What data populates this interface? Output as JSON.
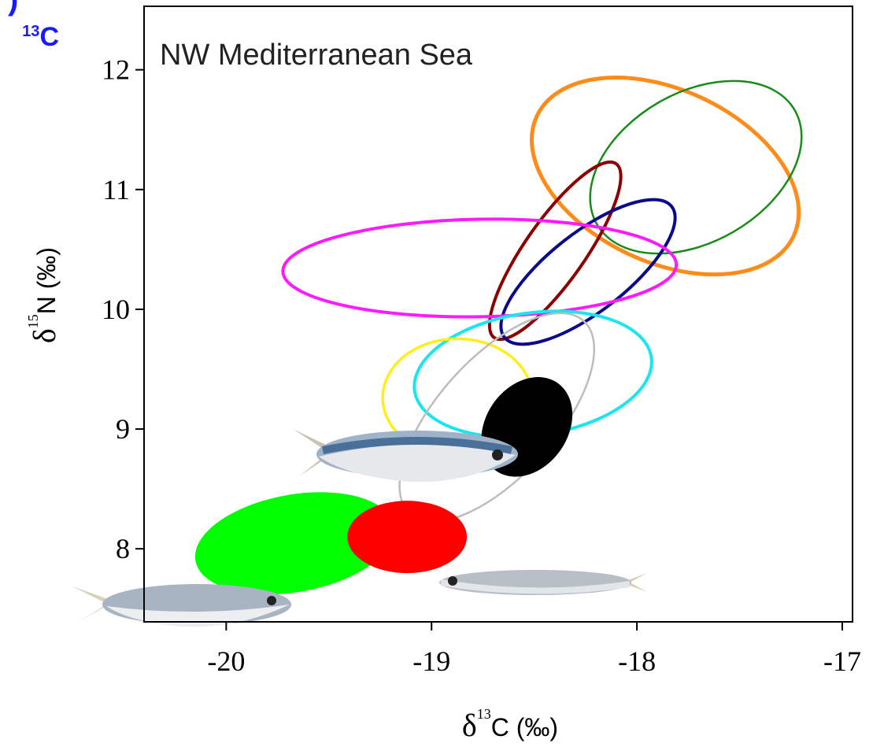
{
  "chart_data": {
    "type": "ellipse",
    "title": "NW Mediterranean Sea",
    "panel_fragment": ")",
    "panel_label": {
      "sup": "13",
      "text": "C"
    },
    "xlabel": {
      "symbol": "δ",
      "sup": "13",
      "text": "C (‰)"
    },
    "ylabel": {
      "symbol": "δ",
      "sup": "15",
      "text": "N (‰)"
    },
    "xlim": [
      -20.4,
      -16.95
    ],
    "ylim": [
      7.39,
      12.53
    ],
    "xticks": [
      -20,
      -19,
      -18,
      -17
    ],
    "yticks": [
      8,
      9,
      10,
      11,
      12
    ],
    "series": [
      {
        "color": "#ff8c1a",
        "filled": false,
        "width": 5,
        "cx": -17.862,
        "cy": 11.113,
        "rx": 0.69,
        "ry": 0.72,
        "angle": 25
      },
      {
        "color": "#1a8a1a",
        "filled": false,
        "width": 2.5,
        "cx": -17.713,
        "cy": 11.186,
        "rx": 0.556,
        "ry": 0.624,
        "angle": -30
      },
      {
        "color": "#8b0000",
        "filled": false,
        "width": 4,
        "cx": -18.398,
        "cy": 10.489,
        "rx": 0.517,
        "ry": 0.25,
        "angle": -55
      },
      {
        "color": "#0a0a8a",
        "filled": false,
        "width": 4,
        "cx": -18.238,
        "cy": 10.312,
        "rx": 0.517,
        "ry": 0.328,
        "angle": -38
      },
      {
        "color": "#ff1aff",
        "filled": false,
        "width": 4,
        "cx": -18.766,
        "cy": 10.345,
        "rx": 0.958,
        "ry": 0.407,
        "angle": -1
      },
      {
        "color": "#1ae6f0",
        "filled": false,
        "width": 4,
        "cx": -18.506,
        "cy": 9.458,
        "rx": 0.582,
        "ry": 0.512,
        "angle": -8
      },
      {
        "color": "#ffee1a",
        "filled": false,
        "width": 3.5,
        "cx": -18.874,
        "cy": 9.261,
        "rx": 0.364,
        "ry": 0.493,
        "angle": 0
      },
      {
        "color": "#bdbdbd",
        "filled": false,
        "width": 2.5,
        "cx": -18.682,
        "cy": 9.097,
        "rx": 0.632,
        "ry": 0.493,
        "angle": -48
      },
      {
        "color": "#000000",
        "filled": true,
        "width": 0,
        "cx": -18.536,
        "cy": 9.018,
        "rx": 0.261,
        "ry": 0.342,
        "angle": -55
      },
      {
        "color": "#00ff00",
        "filled": true,
        "width": 0,
        "cx": -19.667,
        "cy": 8.046,
        "rx": 0.49,
        "ry": 0.407,
        "angle": -10
      },
      {
        "color": "#ff0000",
        "filled": true,
        "width": 0,
        "cx": -19.119,
        "cy": 8.099,
        "rx": 0.291,
        "ry": 0.302,
        "angle": 0
      }
    ]
  }
}
